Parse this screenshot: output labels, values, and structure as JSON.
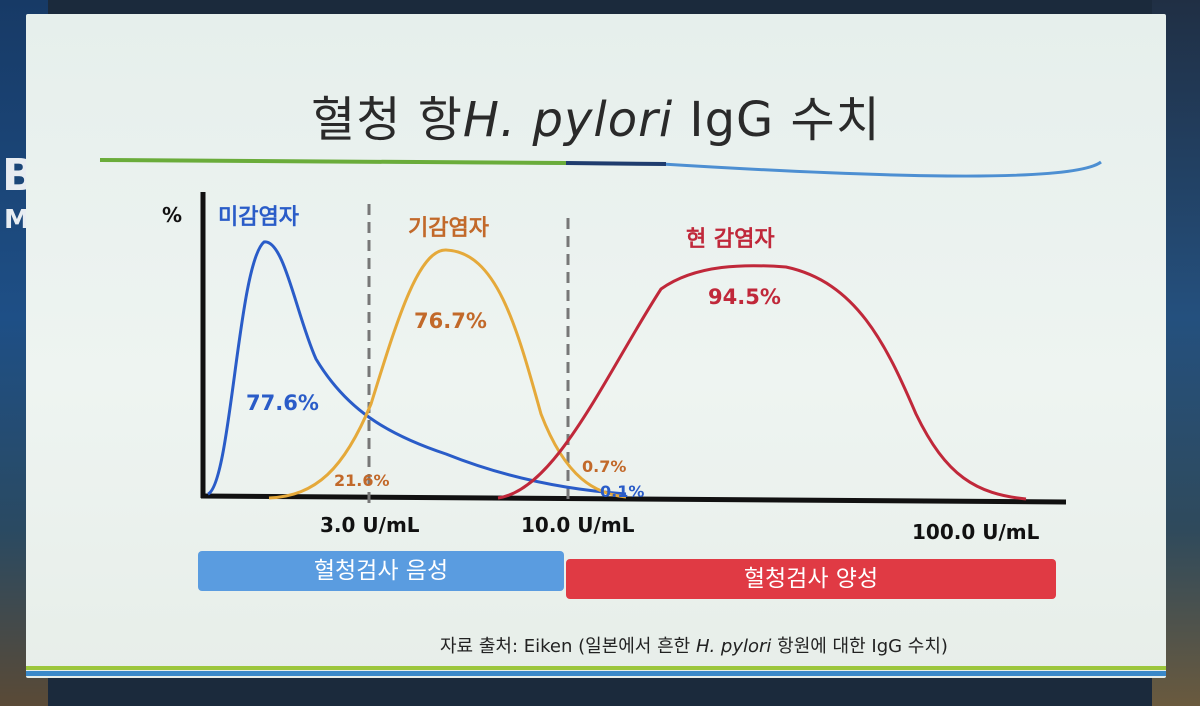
{
  "title_prefix": "혈청 항",
  "title_italic": "H. pylori",
  "title_suffix": " IgG 수치",
  "colors": {
    "uninfected": "#2a5cc8",
    "past_infected": "#e5a93a",
    "past_label": "#c2692a",
    "current_infected": "#c0283a",
    "negative_bar": "#5a9ce0",
    "positive_bar": "#e03a44"
  },
  "chart_data": {
    "type": "area",
    "ylabel": "%",
    "x_ticks": [
      "3.0 U/mL",
      "10.0 U/mL",
      "100.0 U/mL"
    ],
    "groups": [
      {
        "name": "미감염자",
        "percent_labels": [
          "77.6%",
          "0.1%"
        ]
      },
      {
        "name": "기감염자",
        "percent_labels": [
          "21.6%",
          "76.7%",
          "0.7%"
        ]
      },
      {
        "name": "현 감염자",
        "percent_labels": [
          "94.5%"
        ]
      }
    ]
  },
  "bars": {
    "negative": "혈청검사 음성",
    "positive": "혈청검사 양성"
  },
  "source": {
    "prefix": "자료 출처: Eiken (일본에서 흔한 ",
    "italic": "H. pylori",
    "suffix": " 항원에 대한  IgG 수치)"
  }
}
